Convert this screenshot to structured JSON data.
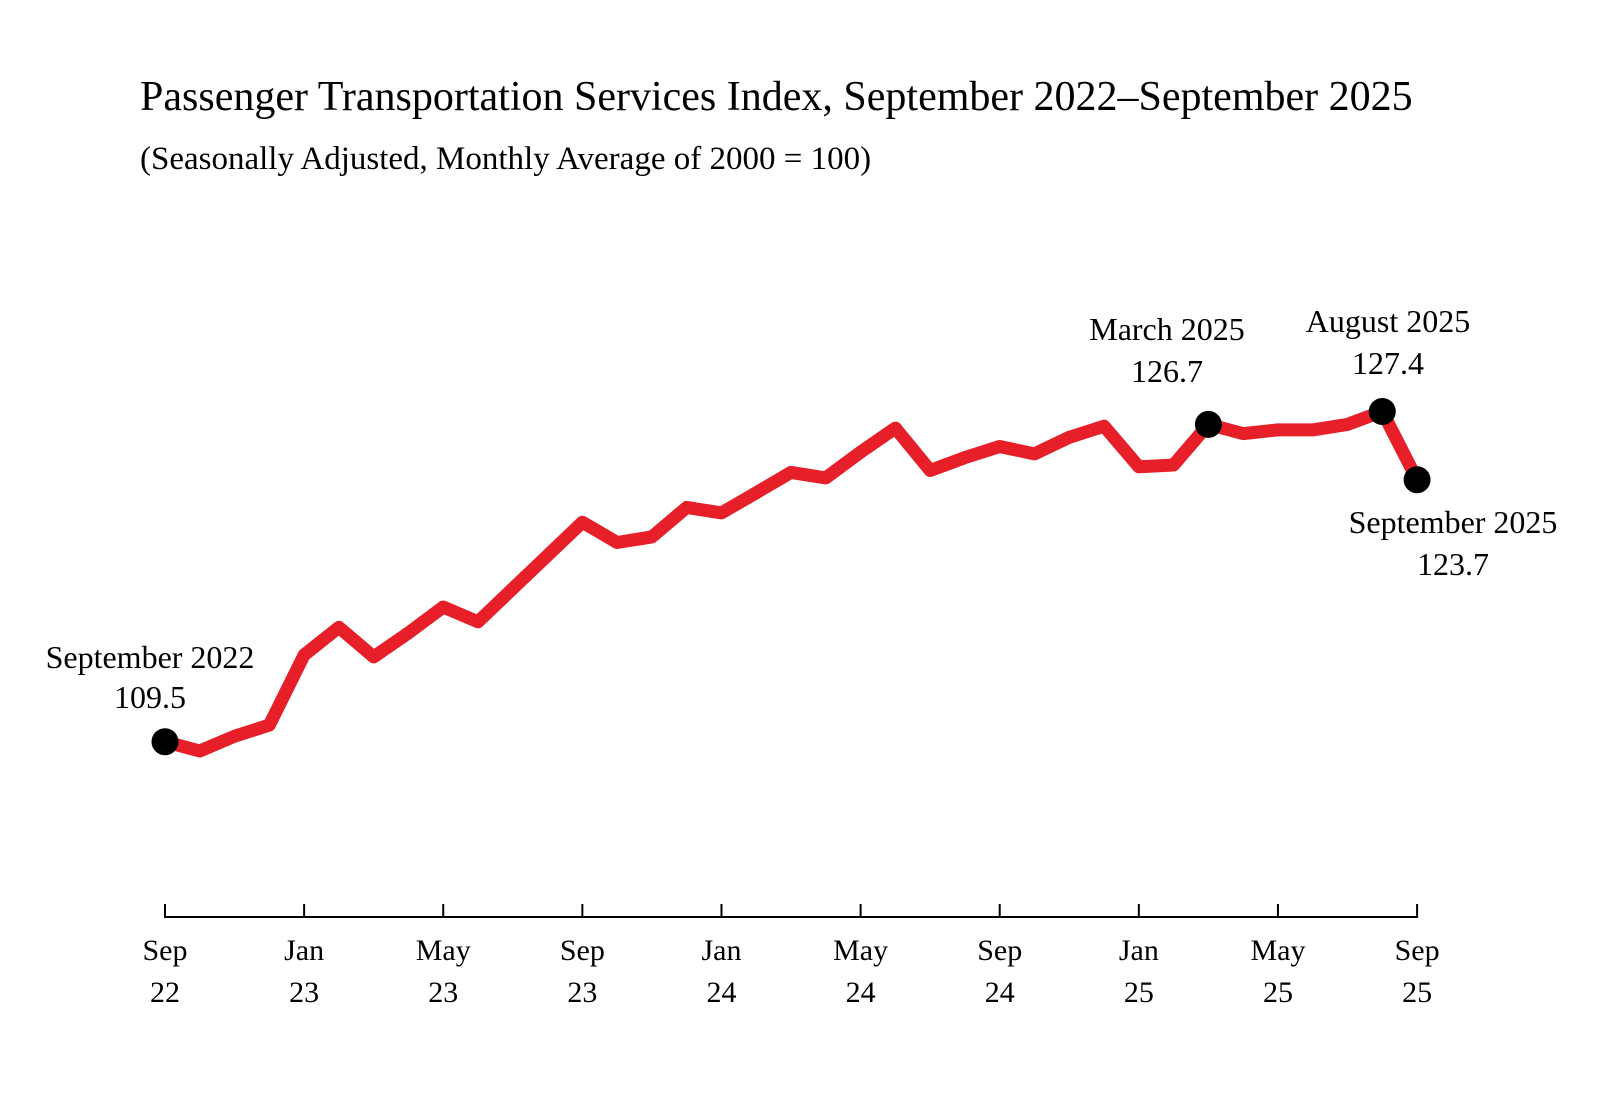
{
  "header": {
    "title": "Passenger Transportation Services Index, September 2022–September 2025",
    "subtitle": "(Seasonally Adjusted, Monthly Average of 2000 = 100)"
  },
  "colors": {
    "line": "#e71f28",
    "marker": "#000000",
    "axis": "#000000",
    "text": "#000000",
    "background": "#ffffff"
  },
  "chart_data": {
    "type": "line",
    "title": "Passenger Transportation Services Index, September 2022–September 2025",
    "subtitle": "(Seasonally Adjusted, Monthly Average of 2000 = 100)",
    "series_name": "Passenger Transportation Services Index",
    "x": [
      "Sep 2022",
      "Oct 2022",
      "Nov 2022",
      "Dec 2022",
      "Jan 2023",
      "Feb 2023",
      "Mar 2023",
      "Apr 2023",
      "May 2023",
      "Jun 2023",
      "Jul 2023",
      "Aug 2023",
      "Sep 2023",
      "Oct 2023",
      "Nov 2023",
      "Dec 2023",
      "Jan 2024",
      "Feb 2024",
      "Mar 2024",
      "Apr 2024",
      "May 2024",
      "Jun 2024",
      "Jul 2024",
      "Aug 2024",
      "Sep 2024",
      "Oct 2024",
      "Nov 2024",
      "Dec 2024",
      "Jan 2025",
      "Feb 2025",
      "Mar 2025",
      "Apr 2025",
      "May 2025",
      "Jun 2025",
      "Jul 2025",
      "Aug 2025",
      "Sep 2025"
    ],
    "values": [
      109.5,
      109.0,
      109.8,
      110.4,
      114.2,
      115.7,
      114.1,
      115.4,
      116.8,
      116.0,
      117.8,
      119.6,
      121.4,
      120.3,
      120.6,
      122.2,
      121.9,
      123.0,
      124.1,
      123.8,
      125.2,
      126.5,
      124.2,
      124.9,
      125.5,
      125.1,
      126.0,
      126.6,
      124.4,
      124.5,
      126.7,
      126.2,
      126.4,
      126.4,
      126.7,
      127.4,
      123.7
    ],
    "xticks": [
      {
        "month": "Sep",
        "year": "22",
        "month_index": 0
      },
      {
        "month": "Jan",
        "year": "23",
        "month_index": 4
      },
      {
        "month": "May",
        "year": "23",
        "month_index": 8
      },
      {
        "month": "Sep",
        "year": "23",
        "month_index": 12
      },
      {
        "month": "Jan",
        "year": "24",
        "month_index": 16
      },
      {
        "month": "May",
        "year": "24",
        "month_index": 20
      },
      {
        "month": "Sep",
        "year": "24",
        "month_index": 24
      },
      {
        "month": "Jan",
        "year": "25",
        "month_index": 28
      },
      {
        "month": "May",
        "year": "25",
        "month_index": 32
      },
      {
        "month": "Sep",
        "year": "25",
        "month_index": 36
      }
    ],
    "ylim": [
      100,
      133
    ],
    "grid": false,
    "legend": "none",
    "y_axis_shown": false,
    "annotations": [
      {
        "id": "sep-2022",
        "label": "September 2022",
        "value_label": "109.5",
        "month_index": 0,
        "value": 109.5
      },
      {
        "id": "mar-2025",
        "label": "March 2025",
        "value_label": "126.7",
        "month_index": 30,
        "value": 126.7
      },
      {
        "id": "aug-2025",
        "label": "August 2025",
        "value_label": "127.4",
        "month_index": 35,
        "value": 127.4
      },
      {
        "id": "sep-2025",
        "label": "September 2025",
        "value_label": "123.7",
        "month_index": 36,
        "value": 123.7
      }
    ]
  }
}
